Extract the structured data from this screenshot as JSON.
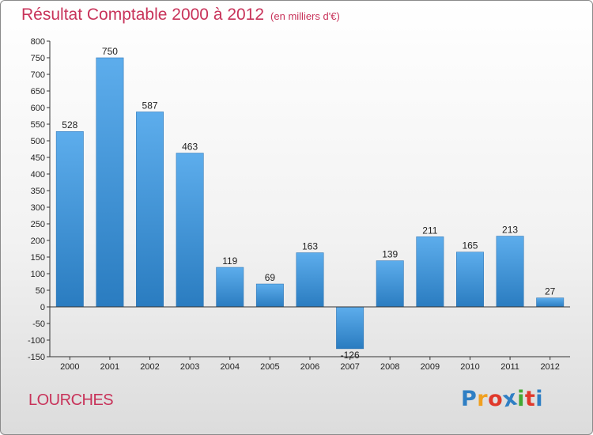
{
  "chart_data": {
    "type": "bar",
    "title": "Résultat Comptable 2000 à 2012",
    "subtitle": "(en milliers d'€)",
    "categories": [
      "2000",
      "2001",
      "2002",
      "2003",
      "2004",
      "2005",
      "2006",
      "2007",
      "2008",
      "2009",
      "2010",
      "2011",
      "2012"
    ],
    "values": [
      528,
      750,
      587,
      463,
      119,
      69,
      163,
      -126,
      139,
      211,
      165,
      213,
      27
    ],
    "ylim": [
      -150,
      800
    ],
    "yticks": [
      -150,
      -100,
      -50,
      0,
      50,
      100,
      150,
      200,
      250,
      300,
      350,
      400,
      450,
      500,
      550,
      600,
      650,
      700,
      750,
      800
    ],
    "grid": false,
    "xlabel": "",
    "ylabel": "",
    "bar_color": "#3d93d6",
    "axis_color": "#333333"
  },
  "footer": {
    "place": "LOURCHES",
    "brand": [
      "P",
      "r",
      "o",
      "x",
      "i",
      "t",
      "i"
    ],
    "brand_colors": [
      "#2f7fc4",
      "#f0a020",
      "#e0392b",
      "#2f7fc4",
      "#43a832",
      "#e0392b",
      "#2f7fc4"
    ]
  },
  "colors": {
    "title": "#c8335a"
  }
}
